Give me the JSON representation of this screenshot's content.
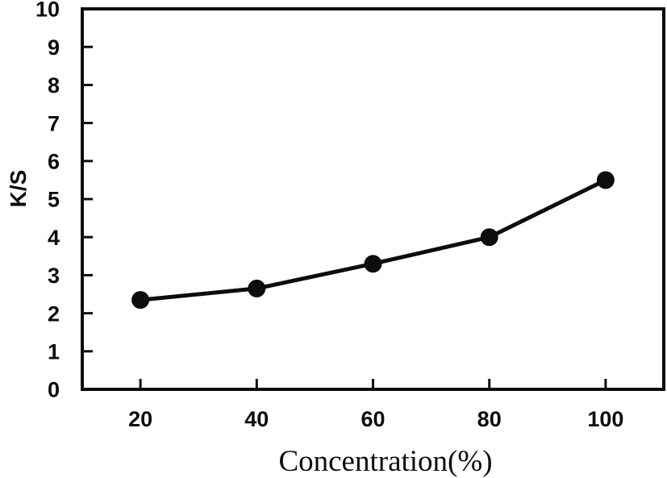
{
  "figure": {
    "background_color": "#ffffff",
    "foreground_color": "#0d0d0d"
  },
  "chart_data": {
    "type": "line",
    "title": "",
    "xlabel": "Concentration(%)",
    "ylabel": "K/S",
    "x": [
      20,
      40,
      60,
      80,
      100
    ],
    "series": [
      {
        "name": "K/S",
        "values": [
          2.35,
          2.65,
          3.3,
          4.0,
          5.5
        ]
      }
    ],
    "x_ticks": [
      20,
      40,
      60,
      80,
      100
    ],
    "y_ticks": [
      0,
      1,
      2,
      3,
      4,
      5,
      6,
      7,
      8,
      9,
      10
    ],
    "xlim": [
      10,
      110
    ],
    "ylim": [
      0,
      10
    ],
    "grid": false,
    "legend": "none",
    "marker": "filled-circle",
    "line_color": "#0d0d0d",
    "marker_color": "#0d0d0d",
    "axis_color": "#0d0d0d",
    "tick_direction": "in"
  }
}
